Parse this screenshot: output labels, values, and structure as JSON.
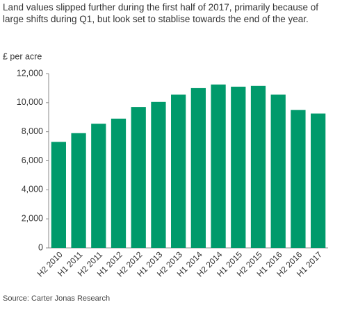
{
  "chart_data": {
    "type": "bar",
    "title": "Land values slipped further during the first half of 2017, primarily because of large shifts during Q1, but look set to stablise towards the end of the year.",
    "y_label": "£ per acre",
    "source": "Source: Carter Jonas Research",
    "categories": [
      "H2 2010",
      "H1 2011",
      "H2 2011",
      "H1 2012",
      "H2 2012",
      "H1 2013",
      "H2 2013",
      "H1 2014",
      "H2 2014",
      "H1 2015",
      "H2 2015",
      "H1 2016",
      "H2 2016",
      "H1 2017"
    ],
    "values": [
      7300,
      7900,
      8550,
      8900,
      9700,
      10050,
      10550,
      11000,
      11250,
      11100,
      11150,
      10550,
      9500,
      9250
    ],
    "color": "#009a6b",
    "ylim": [
      0,
      12000
    ],
    "yticks": [
      0,
      {
        "value": 2000,
        "label": "2,000"
      },
      {
        "value": 4000,
        "label": "4,000"
      },
      {
        "value": 6000,
        "label": "6,000"
      },
      {
        "value": 8000,
        "label": "8,000"
      },
      {
        "value": 10000,
        "label": "10,000"
      },
      {
        "value": 12000,
        "label": "12,000"
      }
    ],
    "grid": false
  }
}
